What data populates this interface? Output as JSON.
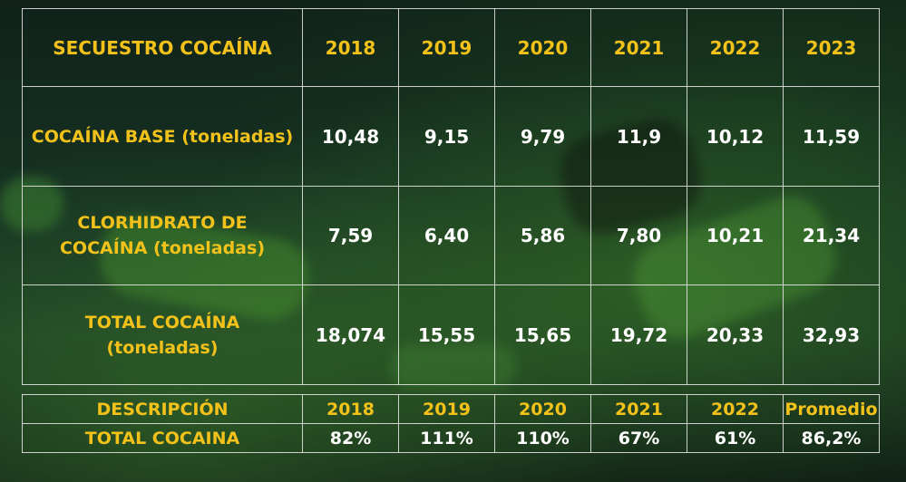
{
  "chart_data": [
    {
      "type": "table",
      "columns": [
        "SECUESTRO COCAÍNA",
        "2018",
        "2019",
        "2020",
        "2021",
        "2022",
        "2023"
      ],
      "rows": [
        {
          "label": "COCAÍNA BASE (toneladas)",
          "values": [
            "10,48",
            "9,15",
            "9,79",
            "11,9",
            "10,12",
            "11,59"
          ]
        },
        {
          "label_lines": [
            "CLORHIDRATO DE",
            "COCAÍNA (toneladas)"
          ],
          "values": [
            "7,59",
            "6,40",
            "5,86",
            "7,80",
            "10,21",
            "21,34"
          ]
        },
        {
          "label_lines": [
            "TOTAL COCAÍNA",
            "(toneladas)"
          ],
          "values": [
            "18,074",
            "15,55",
            "15,65",
            "19,72",
            "20,33",
            "32,93"
          ]
        }
      ]
    },
    {
      "type": "table",
      "columns": [
        "DESCRIPCIÓN",
        "2018",
        "2019",
        "2020",
        "2021",
        "2022",
        "Promedio"
      ],
      "rows": [
        {
          "label": "TOTAL COCAINA",
          "values": [
            "82%",
            "111%",
            "110%",
            "67%",
            "61%",
            "86,2%"
          ]
        }
      ]
    }
  ],
  "colors": {
    "header_text": "#f2c21b",
    "value_text": "#ffffff",
    "grid_lines": "#ebebeb",
    "background": "#163222"
  }
}
